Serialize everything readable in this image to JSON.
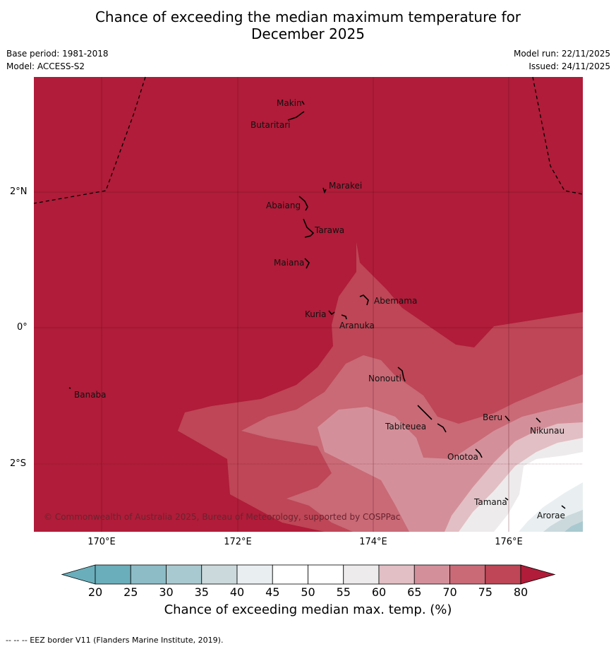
{
  "title_line1": "Chance of exceeding the median maximum temperature for",
  "title_line2": "December 2025",
  "base_period": "Base period: 1981-2018",
  "model": "Model: ACCESS-S2",
  "model_run": "Model run: 22/11/2025",
  "issued": "Issued: 24/11/2025",
  "lat_labels": [
    "2°N",
    "0°",
    "2°S"
  ],
  "lon_labels": [
    "170°E",
    "172°E",
    "174°E",
    "176°E"
  ],
  "islands": [
    "Makin",
    "Butaritari",
    "Marakei",
    "Abaiang",
    "Tarawa",
    "Maiana",
    "Abemama",
    "Kuria",
    "Aranuka",
    "Nonouti",
    "Banaba",
    "Tabiteuea",
    "Beru",
    "Nikunau",
    "Onotoa",
    "Tamana",
    "Arorae"
  ],
  "copyright": "© Commonwealth of Australia 2025, Bureau of Meteorology, supported by COSPPac",
  "colorbar": {
    "ticks": [
      "20",
      "25",
      "30",
      "35",
      "40",
      "45",
      "50",
      "55",
      "60",
      "65",
      "70",
      "75",
      "80"
    ],
    "colors": [
      "#6aaebb",
      "#8dbcc6",
      "#a8c9cf",
      "#cbd9dd",
      "#e9eff1",
      "#ffffff",
      "#ffffff",
      "#eeebec",
      "#e2bfc4",
      "#d4909a",
      "#c96a76",
      "#be4656",
      "#b01c39"
    ],
    "title": "Chance of exceeding median max. temp. (%)"
  },
  "footnote": "--  --  -- EEZ border V11 (Flanders Marine Institute, 2019)."
}
